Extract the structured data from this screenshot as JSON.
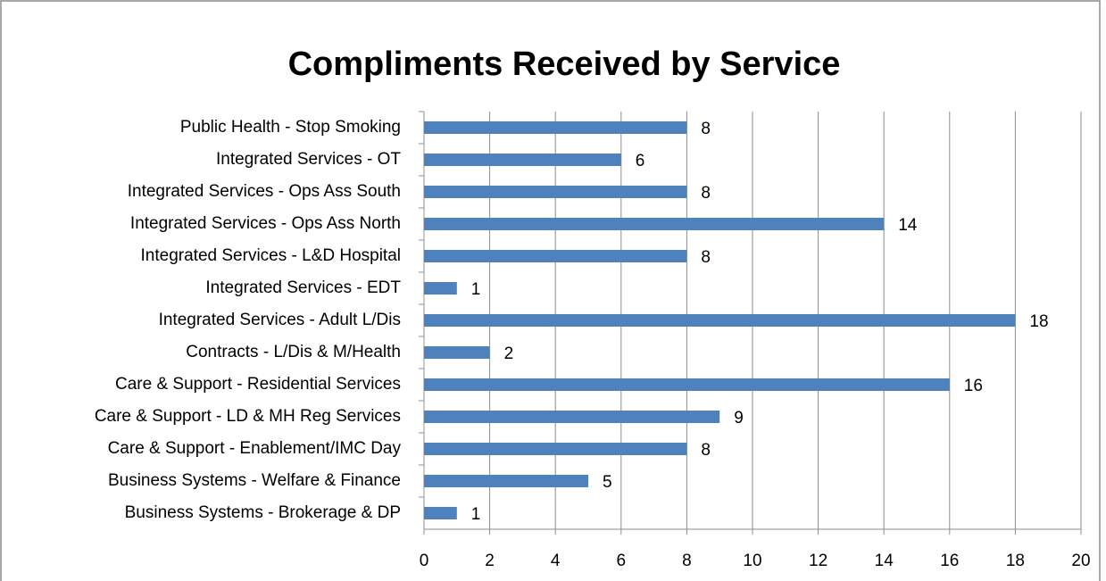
{
  "chart_data": {
    "type": "bar",
    "orientation": "horizontal",
    "title": "Compliments Received by Service",
    "categories": [
      "Public Health - Stop Smoking",
      "Integrated Services - OT",
      "Integrated Services - Ops Ass South",
      "Integrated Services - Ops Ass North",
      "Integrated Services - L&D Hospital",
      "Integrated Services - EDT",
      "Integrated Services - Adult L/Dis",
      "Contracts - L/Dis & M/Health",
      "Care & Support - Residential Services",
      "Care & Support - LD & MH Reg Services",
      "Care & Support - Enablement/IMC Day",
      "Business Systems - Welfare & Finance",
      "Business Systems - Brokerage & DP"
    ],
    "values": [
      8,
      6,
      8,
      14,
      8,
      1,
      18,
      2,
      16,
      9,
      8,
      5,
      1
    ],
    "color": "#4f81bd",
    "xlim": [
      0,
      20
    ],
    "xticks": [
      0,
      2,
      4,
      6,
      8,
      10,
      12,
      14,
      16,
      18,
      20
    ],
    "grid": true
  }
}
